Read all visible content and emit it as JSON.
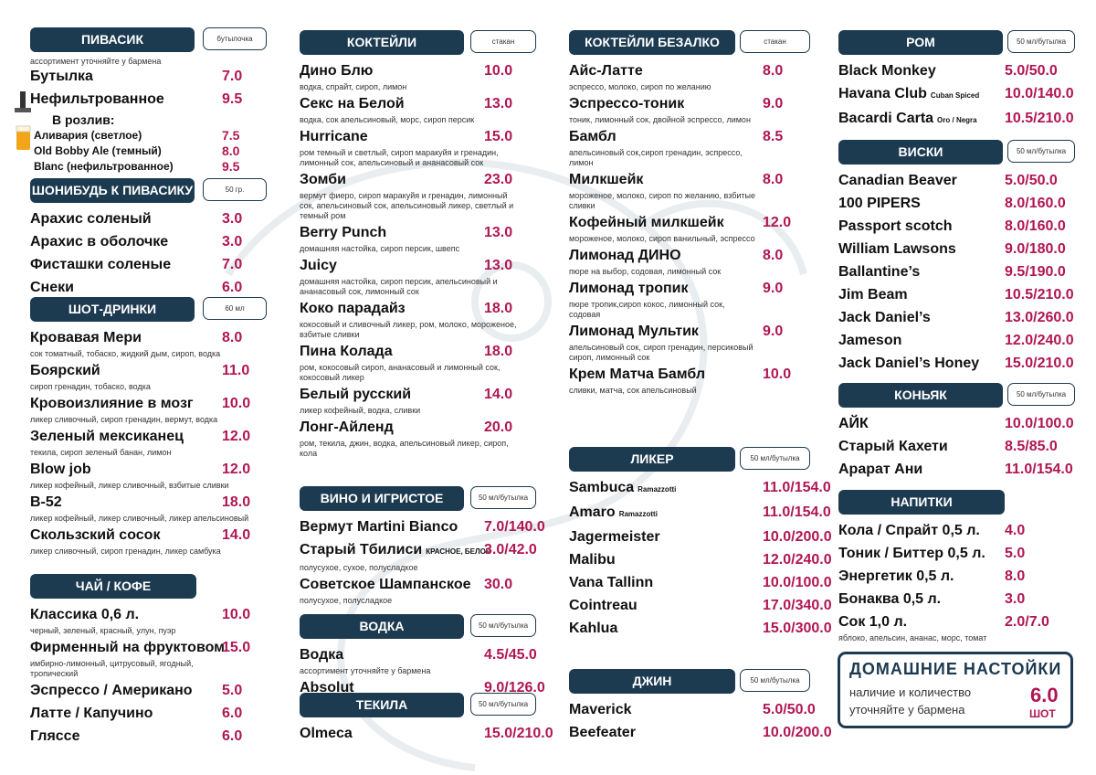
{
  "sections": [
    {
      "title": "ПИВАСИК",
      "unit": "бутылочка",
      "note": "ассортимент уточняйте у бармена",
      "items": [
        {
          "name": "Бутылка",
          "price": "7.0"
        },
        {
          "name": "Нефильтрованное",
          "price": "9.5"
        }
      ],
      "draft": {
        "title": "В розлив:",
        "items": [
          {
            "name": "Аливария (светлое)",
            "price": "7.5"
          },
          {
            "name": "Old Bobby Ale (темный)",
            "price": "8.0"
          },
          {
            "name": "Blanc (нефильтрованное)",
            "price": "9.5"
          }
        ]
      }
    },
    {
      "title": "ШОНИБУДЬ К ПИВАСИКУ",
      "unit": "50 гр.",
      "items": [
        {
          "name": "Арахис соленый",
          "price": "3.0"
        },
        {
          "name": "Арахис в оболочке",
          "price": "3.0"
        },
        {
          "name": "Фисташки соленые",
          "price": "7.0"
        },
        {
          "name": "Снеки",
          "price": "6.0"
        }
      ]
    },
    {
      "title": "ШОТ-ДРИНКИ",
      "unit": "60 мл",
      "items": [
        {
          "name": "Кровавая Мери",
          "price": "8.0",
          "desc": "сок томатный, тобаско, жидкий дым, сироп, водка"
        },
        {
          "name": "Боярский",
          "price": "11.0",
          "desc": "сироп гренадин, тобаско, водка"
        },
        {
          "name": "Кровоизлияние в мозг",
          "price": "10.0",
          "desc": "ликер сливочный, сироп гренадин, вермут, водка"
        },
        {
          "name": "Зеленый мексиканец",
          "price": "12.0",
          "desc": "текила, сироп зеленый банан, лимон"
        },
        {
          "name": "Blow job",
          "price": "12.0",
          "desc": "ликер кофейный, ликер сливочный, взбитые сливки"
        },
        {
          "name": "B-52",
          "price": "18.0",
          "desc": "ликер кофейный, ликер сливочный, ликер апельсиновый"
        },
        {
          "name": "Скользский сосок",
          "price": "14.0",
          "desc": "ликер сливочный, сироп гренадин, ликер самбука"
        }
      ]
    },
    {
      "title": "ЧАЙ / КОФЕ",
      "items": [
        {
          "name": "Классика 0,6 л.",
          "price": "10.0",
          "desc": "черный, зеленый, красный, улун, пуэр"
        },
        {
          "name": "Фирменный на фруктовом",
          "price": "15.0",
          "desc": "имбирно-лимонный, цитрусовый, ягодный, тропический"
        },
        {
          "name": "Эспрессо / Американо",
          "price": "5.0"
        },
        {
          "name": "Латте / Капучино",
          "price": "6.0"
        },
        {
          "name": "Гляссе",
          "price": "6.0"
        }
      ]
    },
    {
      "title": "КОКТЕЙЛИ",
      "unit": "стакан",
      "items": [
        {
          "name": "Дино Блю",
          "price": "10.0",
          "desc": "водка, спрайт, сироп, лимон"
        },
        {
          "name": "Секс на Белой",
          "price": "13.0",
          "desc": "водка, сок апельсиновый, морс, сироп персик"
        },
        {
          "name": "Hurricane",
          "price": "15.0",
          "desc": "ром темный и светлый, сироп маракуйя и гренадин, лимонный сок, апельсиновый и ананасовый сок"
        },
        {
          "name": "Зомби",
          "price": "23.0",
          "desc": "вермут фиеро, сироп маракуйя и гренадин, лимонный сок, апельсиновый сок, апельсиновый ликер, светлый и темный ром"
        },
        {
          "name": "Berry Punch",
          "price": "13.0",
          "desc": "домашняя настойка, сироп персик, швепс"
        },
        {
          "name": "Juicy",
          "price": "13.0",
          "desc": "домашняя настойка, сироп персик, апельсиновый и ананасовый сок, лимонный сок"
        },
        {
          "name": "Коко парадайз",
          "price": "18.0",
          "desc": "кокосовый и сливочный ликер, ром, молоко, мороженое, взбитые сливки"
        },
        {
          "name": "Пина Колада",
          "price": "18.0",
          "desc": "ром, кокосовый сироп, ананасовый и лимонный сок, кокосовый ликер"
        },
        {
          "name": "Белый русский",
          "price": "14.0",
          "desc": "ликер кофейный, водка, сливки"
        },
        {
          "name": "Лонг-Айленд",
          "price": "20.0",
          "desc": "ром, текила, джин, водка, апельсиновый ликер, сироп, кола"
        }
      ]
    },
    {
      "title": "ВИНО И ИГРИСТОЕ",
      "unit": "50 мл/бутылка",
      "items": [
        {
          "name": "Вермут Martini Bianco",
          "price": "7.0/140.0"
        },
        {
          "name": "Старый Тбилиси",
          "sub": "КРАСНОЕ, БЕЛОЕ",
          "price": "3.0/42.0",
          "desc": "полусухое, сухое, полусладкое"
        },
        {
          "name": "Советское Шампанское",
          "price": "30.0",
          "desc": "полусухое, полусладкое"
        }
      ]
    },
    {
      "title": "ВОДКА",
      "unit": "50 мл/бутылка",
      "items": [
        {
          "name": "Водка",
          "price": "4.5/45.0",
          "desc": "ассортимент уточняйте у бармена"
        },
        {
          "name": "Absolut",
          "price": "9.0/126.0"
        }
      ]
    },
    {
      "title": "ТЕКИЛА",
      "unit": "50 мл/бутылка",
      "items": [
        {
          "name": "Olmeca",
          "price": "15.0/210.0"
        }
      ]
    },
    {
      "title": "КОКТЕЙЛИ БЕЗАЛКО",
      "unit": "стакан",
      "items": [
        {
          "name": "Айс-Латте",
          "price": "8.0",
          "desc": "эспрессо, молоко, сироп по желанию"
        },
        {
          "name": "Эспрессо-тоник",
          "price": "9.0",
          "desc": "тоник, лимонный сок, двойной эспрессо, лимон"
        },
        {
          "name": "Бамбл",
          "price": "8.5",
          "desc": "апельсиновый сок,сироп гренадин, эспрессо, лимон"
        },
        {
          "name": "Милкшейк",
          "price": "8.0",
          "desc": "мороженое, молоко, сироп по желанию, взбитые сливки"
        },
        {
          "name": "Кофейный милкшейк",
          "price": "12.0",
          "desc": "мороженое, молоко, сироп ванильный, эспрессо"
        },
        {
          "name": "Лимонад ДИНО",
          "price": "8.0",
          "desc": "пюре на выбор, содовая, лимонный сок"
        },
        {
          "name": "Лимонад тропик",
          "price": "9.0",
          "desc": "пюре тропик,сироп кокос, лимонный сок, содовая"
        },
        {
          "name": "Лимонад Мультик",
          "price": "9.0",
          "desc": "апельсиновый сок, сироп гренадин, персиковый сироп, лимонный сок"
        },
        {
          "name": "Крем Матча Бамбл",
          "price": "10.0",
          "desc": "сливки, матча, сок апельсиновый"
        }
      ]
    },
    {
      "title": "ЛИКЕР",
      "unit": "50 мл/бутылка",
      "items": [
        {
          "name": "Sambuca",
          "sub": "Ramazzotti",
          "price": "11.0/154.0"
        },
        {
          "name": "Amaro",
          "sub": "Ramazzotti",
          "price": "11.0/154.0"
        },
        {
          "name": "Jagermeister",
          "price": "10.0/200.0"
        },
        {
          "name": "Malibu",
          "price": "12.0/240.0"
        },
        {
          "name": "Vana Tallinn",
          "price": "10.0/100.0"
        },
        {
          "name": "Cointreau",
          "price": "17.0/340.0"
        },
        {
          "name": "Kahlua",
          "price": "15.0/300.0"
        }
      ]
    },
    {
      "title": "ДЖИН",
      "unit": "50 мл/бутылка",
      "items": [
        {
          "name": "Maverick",
          "price": "5.0/50.0"
        },
        {
          "name": "Beefeater",
          "price": "10.0/200.0"
        }
      ]
    },
    {
      "title": "РОМ",
      "unit": "50 мл/бутылка",
      "items": [
        {
          "name": "Black Monkey",
          "price": "5.0/50.0"
        },
        {
          "name": "Havana Club",
          "sub": "Cuban Spiced",
          "price": "10.0/140.0"
        },
        {
          "name": "Bacardi Carta",
          "sub": "Oro / Negra",
          "price": "10.5/210.0"
        }
      ]
    },
    {
      "title": "ВИСКИ",
      "unit": "50 мл/бутылка",
      "items": [
        {
          "name": "Canadian Beaver",
          "price": "5.0/50.0"
        },
        {
          "name": "100 PIPERS",
          "price": "8.0/160.0"
        },
        {
          "name": "Passport scotch",
          "price": "8.0/160.0"
        },
        {
          "name": "William Lawsons",
          "price": "9.0/180.0"
        },
        {
          "name": "Ballantine’s",
          "price": "9.5/190.0"
        },
        {
          "name": "Jim Beam",
          "price": "10.5/210.0"
        },
        {
          "name": "Jack Daniel’s",
          "price": "13.0/260.0"
        },
        {
          "name": "Jameson",
          "price": "12.0/240.0"
        },
        {
          "name": "Jack Daniel’s Honey",
          "price": "15.0/210.0"
        }
      ]
    },
    {
      "title": "КОНЬЯК",
      "unit": "50 мл/бутылка",
      "items": [
        {
          "name": "АЙК",
          "price": "10.0/100.0"
        },
        {
          "name": "Старый Кахети",
          "price": "8.5/85.0"
        },
        {
          "name": "Арарат Ани",
          "price": "11.0/154.0"
        }
      ]
    },
    {
      "title": "НАПИТКИ",
      "items": [
        {
          "name": "Кола / Спрайт 0,5 л.",
          "price": "4.0"
        },
        {
          "name": "Тоник / Биттер 0,5 л.",
          "price": "5.0"
        },
        {
          "name": "Энергетик  0,5 л.",
          "price": "8.0"
        },
        {
          "name": "Бонаква  0,5 л.",
          "price": "3.0"
        },
        {
          "name": "Сок 1,0 л.",
          "price": "2.0/7.0",
          "desc": "яблоко, апельсин, ананас, морс, томат"
        }
      ]
    }
  ],
  "home": {
    "title": "ДОМАШНИЕ НАСТОЙКИ",
    "lines": [
      "наличие и количество",
      "уточняйте у бармена"
    ],
    "price": "6.0",
    "unit": "ШОТ"
  }
}
